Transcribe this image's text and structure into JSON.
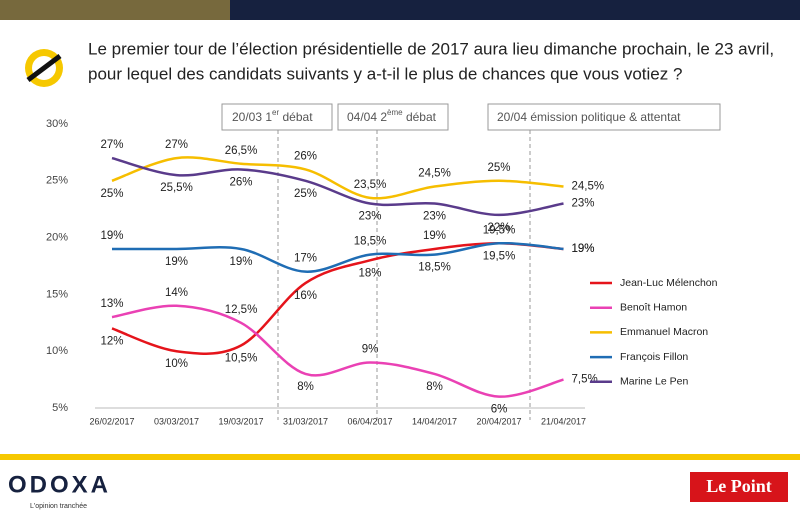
{
  "chart_data": {
    "type": "line",
    "title": [
      "Le premier tour de l’élection présidentielle de 2017 aura lieu dimanche prochain, le 23 avril,",
      "pour lequel des candidats suivants y a-t-il le plus de chances que vous votiez ?"
    ],
    "categories": [
      "26/02/2017",
      "03/03/2017",
      "19/03/2017",
      "31/03/2017",
      "06/04/2017",
      "14/04/2017",
      "20/04/2017",
      "21/04/2017"
    ],
    "series": [
      {
        "name": "Jean-Luc Mélenchon",
        "color": "#e5141b",
        "values": [
          12,
          10,
          10.5,
          16,
          18,
          19,
          19.5,
          19
        ],
        "value_labels": [
          "12%",
          "10%",
          "10,5%",
          "16%",
          "18%",
          "19%",
          "19,5%",
          "19%"
        ]
      },
      {
        "name": "Benoît Hamon",
        "color": "#ea41b4",
        "values": [
          13,
          14,
          12.5,
          8,
          9,
          8,
          6,
          7.5
        ],
        "value_labels": [
          "13%",
          "14%",
          "12,5%",
          "8%",
          "9%",
          "8%",
          "6%",
          "7,5%"
        ]
      },
      {
        "name": "Emmanuel Macron",
        "color": "#f6be00",
        "values": [
          25,
          27,
          26.5,
          26,
          23.5,
          24.5,
          25,
          24.5
        ],
        "value_labels": [
          "25%",
          "27%",
          "26,5%",
          "26%",
          "23,5%",
          "24,5%",
          "25%",
          "24,5%"
        ]
      },
      {
        "name": "François Fillon",
        "color": "#1f6db4",
        "values": [
          19,
          19,
          19,
          17,
          18.5,
          18.5,
          19.5,
          19
        ],
        "value_labels": [
          "19%",
          "19%",
          "19%",
          "17%",
          "18,5%",
          "18,5%",
          "19,5%",
          "19%"
        ]
      },
      {
        "name": "Marine Le Pen",
        "color": "#5a3b8b",
        "values": [
          27,
          25.5,
          26,
          25,
          23,
          23,
          22,
          23
        ],
        "value_labels": [
          "27%",
          "25,5%",
          "26%",
          "25%",
          "23%",
          "23%",
          "22%",
          "23%"
        ]
      }
    ],
    "ylim": [
      5,
      30
    ],
    "yticks": [
      {
        "value": 5,
        "label": "5%"
      },
      {
        "value": 10,
        "label": "10%"
      },
      {
        "value": 15,
        "label": "15%"
      },
      {
        "value": 20,
        "label": "20%"
      },
      {
        "value": 25,
        "label": "25%"
      },
      {
        "value": 30,
        "label": "30%"
      }
    ],
    "annotations": [
      [
        "20/03 1",
        "er",
        " débat"
      ],
      [
        "04/04 2",
        "ème",
        " débat"
      ],
      [
        "20/04 émission politique & attentat"
      ]
    ]
  },
  "footer": {
    "brand": "ODOXA",
    "tagline": "L'opinion tranchée",
    "partner": "Le Point"
  }
}
